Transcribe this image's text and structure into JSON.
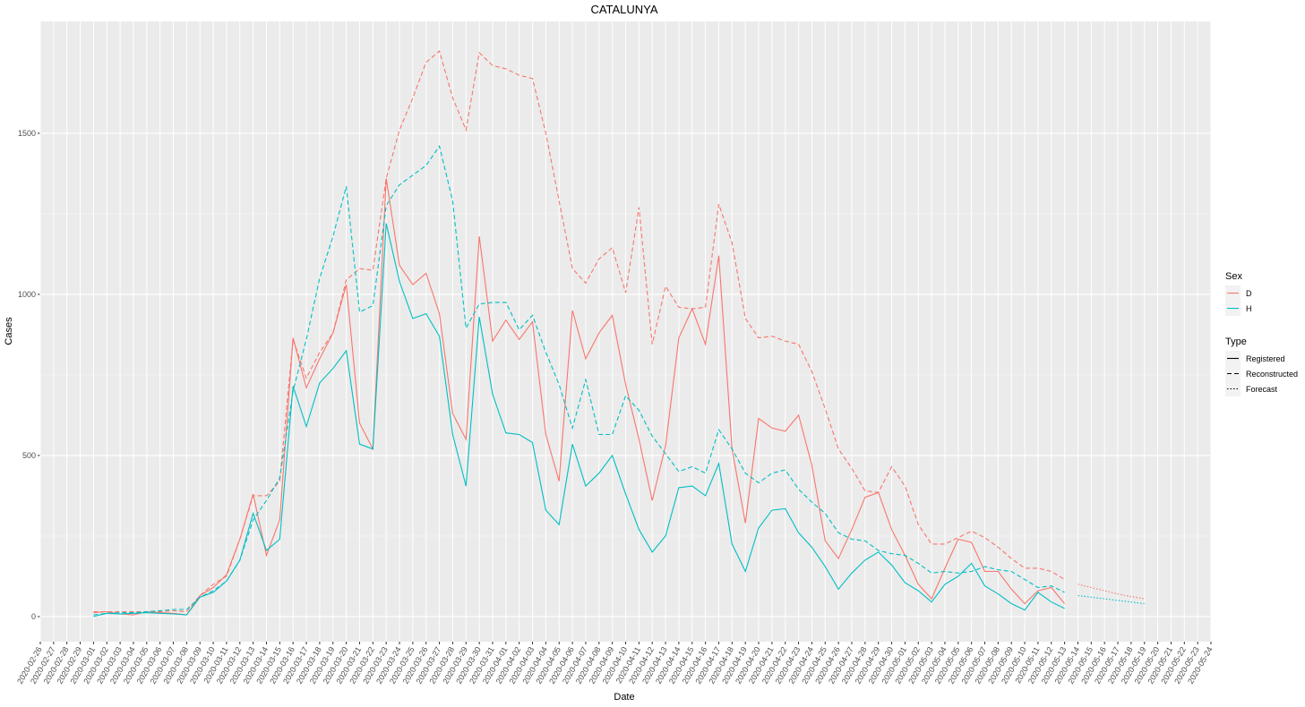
{
  "chart_data": {
    "type": "line",
    "title": "CATALUNYA",
    "x_label": "Date",
    "y_label": "Cases",
    "categories": [
      "2020-02-26",
      "2020-02-27",
      "2020-02-28",
      "2020-02-29",
      "2020-03-01",
      "2020-03-02",
      "2020-03-03",
      "2020-03-04",
      "2020-03-05",
      "2020-03-06",
      "2020-03-07",
      "2020-03-08",
      "2020-03-09",
      "2020-03-10",
      "2020-03-11",
      "2020-03-12",
      "2020-03-13",
      "2020-03-14",
      "2020-03-15",
      "2020-03-16",
      "2020-03-17",
      "2020-03-18",
      "2020-03-19",
      "2020-03-20",
      "2020-03-21",
      "2020-03-22",
      "2020-03-23",
      "2020-03-24",
      "2020-03-25",
      "2020-03-26",
      "2020-03-27",
      "2020-03-28",
      "2020-03-29",
      "2020-03-30",
      "2020-03-31",
      "2020-04-01",
      "2020-04-02",
      "2020-04-03",
      "2020-04-04",
      "2020-04-05",
      "2020-04-06",
      "2020-04-07",
      "2020-04-08",
      "2020-04-09",
      "2020-04-10",
      "2020-04-11",
      "2020-04-12",
      "2020-04-13",
      "2020-04-14",
      "2020-04-15",
      "2020-04-16",
      "2020-04-17",
      "2020-04-18",
      "2020-04-19",
      "2020-04-20",
      "2020-04-21",
      "2020-04-22",
      "2020-04-23",
      "2020-04-24",
      "2020-04-25",
      "2020-04-26",
      "2020-04-27",
      "2020-04-28",
      "2020-04-29",
      "2020-04-30",
      "2020-05-01",
      "2020-05-02",
      "2020-05-03",
      "2020-05-04",
      "2020-05-05",
      "2020-05-06",
      "2020-05-07",
      "2020-05-08",
      "2020-05-09",
      "2020-05-10",
      "2020-05-11",
      "2020-05-12",
      "2020-05-13",
      "2020-05-14",
      "2020-05-15",
      "2020-05-16",
      "2020-05-17",
      "2020-05-18",
      "2020-05-19",
      "2020-05-20",
      "2020-05-21",
      "2020-05-22",
      "2020-05-23",
      "2020-05-24"
    ],
    "ylim": [
      -78,
      1847
    ],
    "yticks": [
      0,
      500,
      1000,
      1500
    ],
    "grid": true,
    "legend": {
      "position": "right",
      "sex": {
        "title": "Sex",
        "items": [
          {
            "name": "D",
            "color": "#f8766d"
          },
          {
            "name": "H",
            "color": "#00bfc4"
          }
        ]
      },
      "type": {
        "title": "Type",
        "items": [
          {
            "name": "Registered",
            "dash": "solid"
          },
          {
            "name": "Reconstructed",
            "dash": "dashed"
          },
          {
            "name": "Forecast",
            "dash": "dotted"
          }
        ]
      }
    },
    "series": [
      {
        "sex": "D",
        "type": "Registered",
        "color": "#f8766d",
        "dash": "solid",
        "values": [
          null,
          null,
          null,
          null,
          12,
          15,
          8,
          5,
          15,
          12,
          10,
          5,
          65,
          90,
          130,
          240,
          380,
          190,
          300,
          865,
          710,
          800,
          880,
          1030,
          600,
          520,
          1360,
          1090,
          1030,
          1065,
          940,
          630,
          550,
          1180,
          855,
          920,
          860,
          915,
          565,
          420,
          950,
          800,
          880,
          935,
          720,
          550,
          360,
          530,
          865,
          955,
          845,
          1120,
          520,
          290,
          615,
          585,
          575,
          625,
          470,
          235,
          180,
          270,
          370,
          385,
          270,
          190,
          100,
          55,
          150,
          240,
          230,
          140,
          140,
          85,
          40,
          80,
          90,
          40,
          null,
          null,
          null,
          null,
          null,
          null,
          null,
          null,
          null,
          null,
          null
        ]
      },
      {
        "sex": "H",
        "type": "Registered",
        "color": "#00bfc4",
        "dash": "solid",
        "values": [
          null,
          null,
          null,
          null,
          0,
          10,
          8,
          10,
          12,
          10,
          8,
          5,
          60,
          75,
          110,
          175,
          320,
          205,
          240,
          715,
          590,
          725,
          770,
          825,
          535,
          520,
          1220,
          1040,
          925,
          940,
          870,
          565,
          405,
          930,
          690,
          570,
          565,
          540,
          330,
          285,
          535,
          405,
          445,
          500,
          380,
          270,
          200,
          250,
          400,
          405,
          375,
          475,
          225,
          140,
          275,
          330,
          335,
          260,
          215,
          155,
          85,
          135,
          175,
          200,
          160,
          105,
          80,
          45,
          100,
          125,
          165,
          95,
          70,
          40,
          20,
          75,
          45,
          25,
          null,
          null,
          null,
          null,
          null,
          null,
          null,
          null,
          null,
          null,
          null
        ]
      },
      {
        "sex": "D",
        "type": "Reconstructed",
        "color": "#f8766d",
        "dash": "dashed",
        "values": [
          null,
          null,
          null,
          null,
          15,
          15,
          15,
          15,
          15,
          15,
          18,
          15,
          65,
          100,
          125,
          240,
          375,
          375,
          420,
          860,
          740,
          820,
          880,
          1045,
          1080,
          1075,
          1360,
          1510,
          1610,
          1720,
          1755,
          1610,
          1510,
          1750,
          1710,
          1700,
          1680,
          1670,
          1500,
          1290,
          1080,
          1035,
          1110,
          1145,
          1005,
          1270,
          845,
          1025,
          960,
          955,
          960,
          1280,
          1160,
          925,
          865,
          870,
          855,
          845,
          760,
          645,
          520,
          460,
          390,
          385,
          465,
          405,
          285,
          225,
          225,
          245,
          265,
          245,
          215,
          180,
          150,
          150,
          140,
          115,
          null,
          null,
          null,
          null,
          null,
          null,
          null,
          null,
          null,
          null,
          null
        ]
      },
      {
        "sex": "H",
        "type": "Reconstructed",
        "color": "#00bfc4",
        "dash": "dashed",
        "values": [
          null,
          null,
          null,
          null,
          5,
          10,
          12,
          12,
          15,
          18,
          22,
          22,
          60,
          80,
          110,
          175,
          300,
          360,
          430,
          700,
          860,
          1050,
          1180,
          1335,
          945,
          965,
          1275,
          1340,
          1370,
          1400,
          1460,
          1290,
          895,
          970,
          975,
          975,
          890,
          935,
          820,
          720,
          585,
          735,
          565,
          565,
          685,
          640,
          560,
          505,
          450,
          465,
          445,
          580,
          520,
          445,
          415,
          445,
          455,
          395,
          355,
          320,
          260,
          240,
          235,
          205,
          195,
          190,
          165,
          135,
          140,
          135,
          140,
          155,
          145,
          140,
          115,
          90,
          95,
          75,
          null,
          null,
          null,
          null,
          null,
          null,
          null,
          null,
          null,
          null,
          null
        ]
      },
      {
        "sex": "D",
        "type": "Forecast",
        "color": "#f8766d",
        "dash": "dotted",
        "values": [
          null,
          null,
          null,
          null,
          null,
          null,
          null,
          null,
          null,
          null,
          null,
          null,
          null,
          null,
          null,
          null,
          null,
          null,
          null,
          null,
          null,
          null,
          null,
          null,
          null,
          null,
          null,
          null,
          null,
          null,
          null,
          null,
          null,
          null,
          null,
          null,
          null,
          null,
          null,
          null,
          null,
          null,
          null,
          null,
          null,
          null,
          null,
          null,
          null,
          null,
          null,
          null,
          null,
          null,
          null,
          null,
          null,
          null,
          null,
          null,
          null,
          null,
          null,
          null,
          null,
          null,
          null,
          null,
          null,
          null,
          null,
          null,
          null,
          null,
          null,
          null,
          null,
          null,
          100,
          90,
          80,
          70,
          62,
          55,
          null,
          null,
          null,
          null,
          null
        ]
      },
      {
        "sex": "H",
        "type": "Forecast",
        "color": "#00bfc4",
        "dash": "dotted",
        "values": [
          null,
          null,
          null,
          null,
          null,
          null,
          null,
          null,
          null,
          null,
          null,
          null,
          null,
          null,
          null,
          null,
          null,
          null,
          null,
          null,
          null,
          null,
          null,
          null,
          null,
          null,
          null,
          null,
          null,
          null,
          null,
          null,
          null,
          null,
          null,
          null,
          null,
          null,
          null,
          null,
          null,
          null,
          null,
          null,
          null,
          null,
          null,
          null,
          null,
          null,
          null,
          null,
          null,
          null,
          null,
          null,
          null,
          null,
          null,
          null,
          null,
          null,
          null,
          null,
          null,
          null,
          null,
          null,
          null,
          null,
          null,
          null,
          null,
          null,
          null,
          null,
          null,
          null,
          65,
          60,
          55,
          50,
          45,
          40,
          null,
          null,
          null,
          null,
          null
        ]
      }
    ]
  }
}
